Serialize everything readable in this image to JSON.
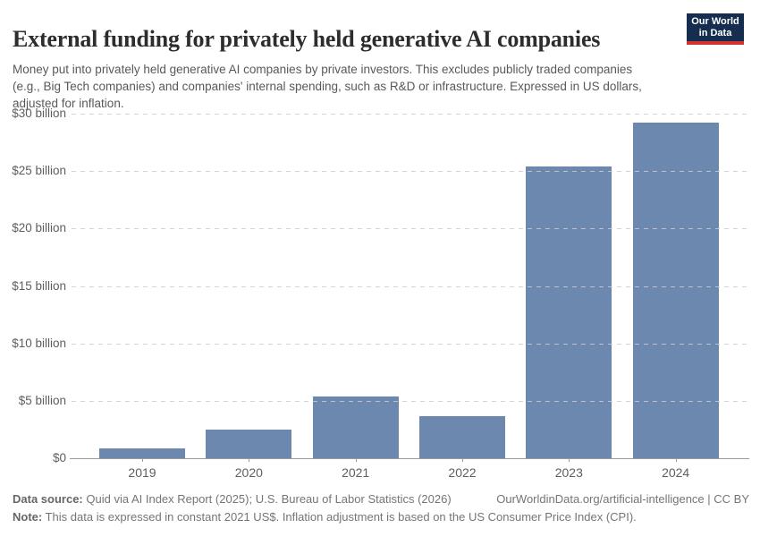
{
  "header": {
    "title": "External funding for privately held generative AI companies",
    "subtitle": "Money put into privately held generative AI companies by private investors. This excludes publicly traded companies (e.g., Big Tech companies) and companies' internal spending, such as R&D or infrastructure. Expressed in US dollars, adjusted for inflation.",
    "logo": {
      "line1": "Our World",
      "line2": "in Data"
    }
  },
  "chart_data": {
    "type": "bar",
    "title": "External funding for privately held generative AI companies",
    "categories": [
      "2019",
      "2020",
      "2021",
      "2022",
      "2023",
      "2024"
    ],
    "values": [
      0.85,
      2.5,
      5.4,
      3.7,
      25.4,
      29.2
    ],
    "unit": "billion US$ (constant 2021 US$)",
    "xlabel": "",
    "ylabel": "",
    "ylim": [
      0,
      30
    ],
    "ytick_interval": 5,
    "ytick_labels": [
      "$0",
      "$5 billion",
      "$10 billion",
      "$15 billion",
      "$20 billion",
      "$25 billion",
      "$30 billion"
    ],
    "grid": "horizontal-dashed",
    "legend": "none"
  },
  "footer": {
    "data_source_label": "Data source:",
    "data_source": "Quid via AI Index Report (2025); U.S. Bureau of Labor Statistics (2026)",
    "attribution": "OurWorldinData.org/artificial-intelligence | CC BY",
    "note_label": "Note:",
    "note": "This data is expressed in constant 2021 US$. Inflation adjustment is based on the US Consumer Price Index (CPI)."
  },
  "colors": {
    "bar": "#6d88ae",
    "gridline": "#cbcbcb",
    "axis": "#9a9a9a",
    "tick_label": "#5e5e5e",
    "title_text": "#2d2d2d",
    "subtitle_text": "#595959",
    "footer_text": "#757575",
    "logo_navy": "#152d4f",
    "logo_red": "#d0342c",
    "background": "#ffffff"
  }
}
